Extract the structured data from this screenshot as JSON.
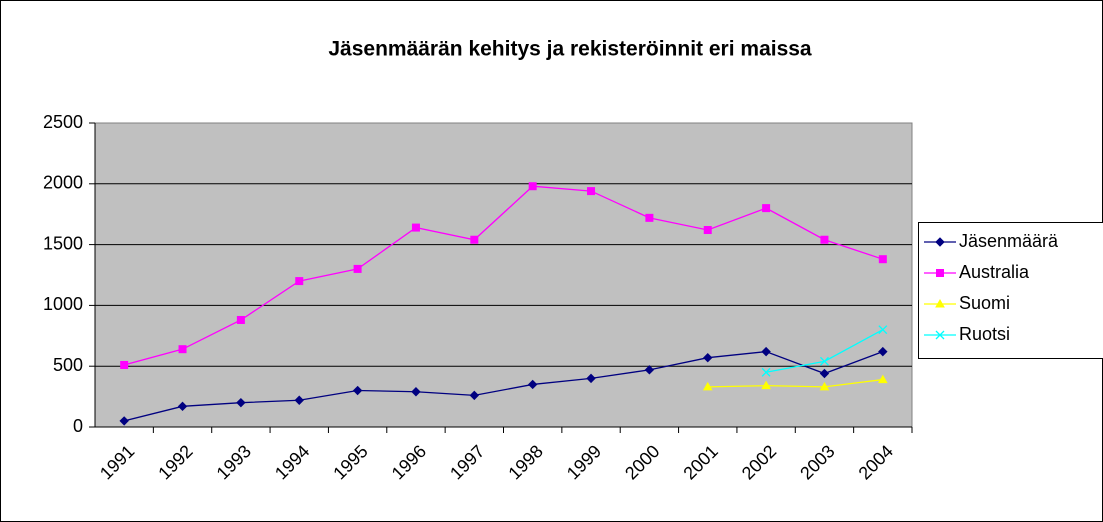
{
  "chart_data": {
    "type": "line",
    "title": "Jäsenmäärän kehitys ja rekisteröinnit eri maissa",
    "categories": [
      "1991",
      "1992",
      "1993",
      "1994",
      "1995",
      "1996",
      "1997",
      "1998",
      "1999",
      "2000",
      "2001",
      "2002",
      "2003",
      "2004"
    ],
    "series": [
      {
        "name": "Jäsenmäärä",
        "color": "#000080",
        "marker": "diamond",
        "values": [
          50,
          170,
          200,
          220,
          300,
          290,
          260,
          350,
          400,
          470,
          570,
          620,
          440,
          620
        ]
      },
      {
        "name": "Australia",
        "color": "#ff00ff",
        "marker": "square",
        "values": [
          510,
          640,
          880,
          1200,
          1300,
          1640,
          1540,
          1980,
          1940,
          1720,
          1620,
          1800,
          1540,
          1380
        ]
      },
      {
        "name": "Suomi",
        "color": "#ffff00",
        "marker": "triangle",
        "values": [
          null,
          null,
          null,
          null,
          null,
          null,
          null,
          null,
          null,
          null,
          330,
          340,
          330,
          390
        ]
      },
      {
        "name": "Ruotsi",
        "color": "#00ffff",
        "marker": "x",
        "values": [
          null,
          null,
          null,
          null,
          null,
          null,
          null,
          null,
          null,
          null,
          null,
          450,
          540,
          800
        ]
      }
    ],
    "ylim": [
      0,
      2500
    ],
    "yticks": [
      0,
      500,
      1000,
      1500,
      2000,
      2500
    ],
    "grid": true,
    "legend": "right"
  }
}
